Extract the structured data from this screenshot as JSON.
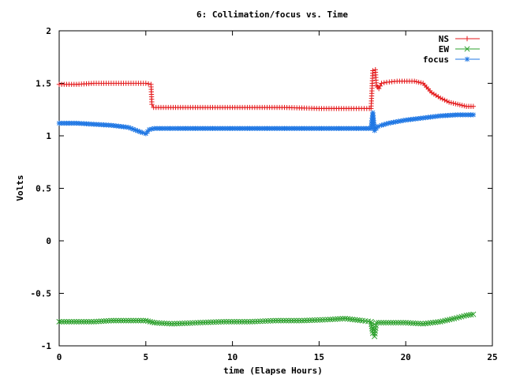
{
  "chart_data": {
    "type": "line",
    "title": "6: Collimation/focus vs. Time",
    "xlabel": "time (Elapse Hours)",
    "ylabel": "Volts",
    "xlim": [
      0,
      25
    ],
    "ylim": [
      -1,
      2
    ],
    "x_ticks": [
      0,
      5,
      10,
      15,
      20,
      25
    ],
    "x_tick_labels": [
      "0",
      "5",
      "10",
      "15",
      "20",
      "25"
    ],
    "y_ticks": [
      2,
      1.5,
      1,
      0.5,
      0,
      -0.5,
      -1
    ],
    "y_tick_labels": [
      "2",
      "1.5",
      "1",
      "0.5",
      "0",
      "-0.5",
      "-1"
    ],
    "grid": false,
    "legend_position": "top-right",
    "series": [
      {
        "name": "NS",
        "color": "#e41a1c",
        "marker": "plus",
        "points": [
          [
            0,
            1.49
          ],
          [
            1,
            1.49
          ],
          [
            2,
            1.5
          ],
          [
            3,
            1.5
          ],
          [
            4,
            1.5
          ],
          [
            5,
            1.5
          ],
          [
            5.3,
            1.49
          ],
          [
            5.35,
            1.3
          ],
          [
            5.45,
            1.27
          ],
          [
            7,
            1.27
          ],
          [
            9,
            1.27
          ],
          [
            11,
            1.27
          ],
          [
            13,
            1.27
          ],
          [
            15,
            1.26
          ],
          [
            17,
            1.26
          ],
          [
            17.9,
            1.26
          ],
          [
            18.0,
            1.26
          ],
          [
            18.1,
            1.62
          ],
          [
            18.25,
            1.63
          ],
          [
            18.3,
            1.48
          ],
          [
            18.45,
            1.45
          ],
          [
            18.6,
            1.5
          ],
          [
            18.9,
            1.51
          ],
          [
            19.5,
            1.52
          ],
          [
            20.5,
            1.52
          ],
          [
            21.0,
            1.5
          ],
          [
            21.5,
            1.41
          ],
          [
            22.0,
            1.36
          ],
          [
            22.5,
            1.32
          ],
          [
            23.0,
            1.3
          ],
          [
            23.5,
            1.28
          ],
          [
            23.9,
            1.28
          ]
        ]
      },
      {
        "name": "EW",
        "color": "#2ca02c",
        "marker": "cross",
        "points": [
          [
            0,
            -0.77
          ],
          [
            1,
            -0.77
          ],
          [
            2,
            -0.77
          ],
          [
            3,
            -0.76
          ],
          [
            4,
            -0.76
          ],
          [
            5,
            -0.76
          ],
          [
            5.5,
            -0.78
          ],
          [
            6.5,
            -0.79
          ],
          [
            8,
            -0.78
          ],
          [
            9.5,
            -0.77
          ],
          [
            11,
            -0.77
          ],
          [
            12.5,
            -0.76
          ],
          [
            14,
            -0.76
          ],
          [
            15.5,
            -0.75
          ],
          [
            16.5,
            -0.74
          ],
          [
            17.5,
            -0.76
          ],
          [
            18.0,
            -0.77
          ],
          [
            18.1,
            -0.88
          ],
          [
            18.2,
            -0.91
          ],
          [
            18.3,
            -0.78
          ],
          [
            19,
            -0.78
          ],
          [
            20,
            -0.78
          ],
          [
            21,
            -0.79
          ],
          [
            22,
            -0.77
          ],
          [
            22.8,
            -0.74
          ],
          [
            23.5,
            -0.71
          ],
          [
            23.9,
            -0.7
          ]
        ]
      },
      {
        "name": "focus",
        "color": "#1f77e4",
        "marker": "star",
        "points": [
          [
            0,
            1.12
          ],
          [
            1,
            1.12
          ],
          [
            2,
            1.11
          ],
          [
            3,
            1.1
          ],
          [
            4,
            1.08
          ],
          [
            4.8,
            1.03
          ],
          [
            5.0,
            1.02
          ],
          [
            5.2,
            1.06
          ],
          [
            5.5,
            1.07
          ],
          [
            7,
            1.07
          ],
          [
            9,
            1.07
          ],
          [
            11,
            1.07
          ],
          [
            13,
            1.07
          ],
          [
            15,
            1.07
          ],
          [
            17,
            1.07
          ],
          [
            18.0,
            1.07
          ],
          [
            18.1,
            1.22
          ],
          [
            18.2,
            1.05
          ],
          [
            18.4,
            1.09
          ],
          [
            18.6,
            1.1
          ],
          [
            19,
            1.12
          ],
          [
            20,
            1.15
          ],
          [
            21,
            1.17
          ],
          [
            22,
            1.19
          ],
          [
            23,
            1.2
          ],
          [
            23.9,
            1.2
          ]
        ]
      }
    ]
  }
}
